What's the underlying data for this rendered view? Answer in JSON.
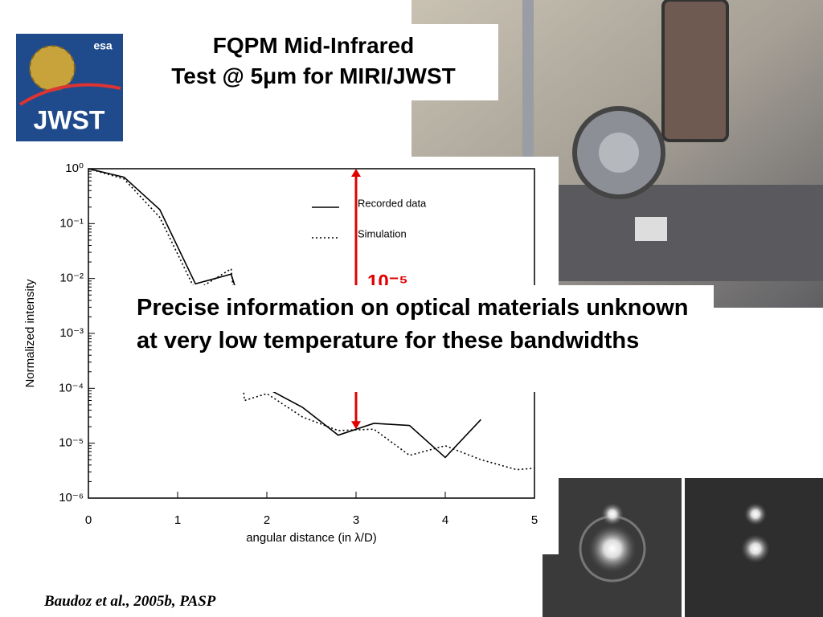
{
  "slide": {
    "title": [
      "FQPM Mid-Infrared",
      "Test @ 5μm for MIRI/JWST"
    ],
    "logo": {
      "agency": "esa",
      "name": "JWST"
    },
    "overlay_text": "Precise information on optical materials unknown at very low temperature for these bandwidths",
    "citation": "Baudoz et al., 2005b, PASP"
  },
  "chart_data": {
    "type": "line",
    "xlabel": "angular distance (in λ/D)",
    "ylabel": "Normalized intensity",
    "log_y": true,
    "xlim": [
      0,
      5
    ],
    "xticks": [
      0,
      1,
      2,
      3,
      4,
      5
    ],
    "ylim": [
      1e-06,
      1
    ],
    "yticks": [
      {
        "value": 1,
        "label": "10⁰"
      },
      {
        "value": 0.1,
        "label": "10⁻¹"
      },
      {
        "value": 0.01,
        "label": "10⁻²"
      },
      {
        "value": 0.001,
        "label": "10⁻³"
      },
      {
        "value": 0.0001,
        "label": "10⁻⁴"
      },
      {
        "value": 1e-05,
        "label": "10⁻⁵"
      },
      {
        "value": 1e-06,
        "label": "10⁻⁶"
      }
    ],
    "legend": "upper right",
    "series": [
      {
        "name": "Recorded data",
        "color": "#000000",
        "style": "solid",
        "x": [
          0,
          0.4,
          0.8,
          1.2,
          1.6,
          2.0,
          2.4,
          2.8,
          3.2,
          3.6,
          4.0,
          4.4
        ],
        "values": [
          1,
          0.7,
          0.18,
          0.008,
          0.012,
          0.0001,
          4.5e-05,
          1.4e-05,
          2.3e-05,
          2.1e-05,
          5.5e-06,
          2.7e-05
        ]
      },
      {
        "name": "Simulation",
        "color": "#000000",
        "style": "dotted",
        "x": [
          0,
          0.4,
          0.8,
          1.2,
          1.6,
          1.75,
          2.0,
          2.4,
          2.8,
          3.2,
          3.6,
          4.0,
          4.4,
          4.8,
          5.0
        ],
        "values": [
          1,
          0.65,
          0.13,
          0.006,
          0.015,
          6e-05,
          8e-05,
          3e-05,
          1.7e-05,
          1.8e-05,
          6e-06,
          9e-06,
          5e-06,
          3.3e-06,
          3.5e-06
        ]
      }
    ],
    "annotation": {
      "text": "10⁻⁵",
      "x": 3,
      "y_top": 1,
      "y": 1.8e-05,
      "color": "#e00000"
    }
  }
}
